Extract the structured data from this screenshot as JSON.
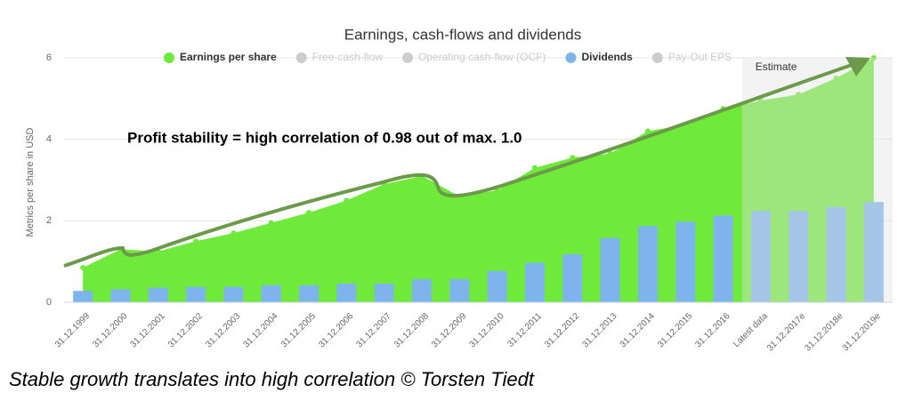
{
  "chart_data": {
    "type": "bar_area",
    "title": "Earnings, cash-flows and dividends",
    "y_label": "Metrics per share in USD",
    "annotation": "Profit stability = high correlation of 0.98 out of max. 1.0",
    "caption": "Stable growth translates into high correlation © Torsten Tiedt",
    "estimate_label": "Estimate",
    "estimate_start": "Latest data",
    "categories": [
      "31.12.1999",
      "31.12.2000",
      "31.12.2001",
      "31.12.2002",
      "31.12.2003",
      "31.12.2004",
      "31.12.2005",
      "31.12.2006",
      "31.12.2007",
      "31.12.2008",
      "31.12.2009",
      "31.12.2010",
      "31.12.2011",
      "31.12.2012",
      "31.12.2013",
      "31.12.2014",
      "31.12.2015",
      "31.12.2016",
      "Latest data",
      "31.12.2017e",
      "31.12.2018e",
      "31.12.2019e"
    ],
    "series": [
      {
        "name": "Earnings per share",
        "color": "#6fea3a",
        "kind": "area",
        "values": [
          0.85,
          1.3,
          1.25,
          1.5,
          1.7,
          1.95,
          2.2,
          2.5,
          2.9,
          3.1,
          2.6,
          2.75,
          3.3,
          3.55,
          3.65,
          4.2,
          4.35,
          4.75,
          4.95,
          5.1,
          5.5,
          6.0
        ]
      },
      {
        "name": "Dividends",
        "color": "#7db4ec",
        "kind": "bar",
        "values": [
          0.28,
          0.32,
          0.36,
          0.38,
          0.38,
          0.42,
          0.42,
          0.46,
          0.46,
          0.57,
          0.57,
          0.77,
          0.97,
          1.18,
          1.58,
          1.87,
          1.98,
          2.13,
          2.24,
          2.24,
          2.34,
          2.46
        ]
      }
    ],
    "legend": [
      {
        "name": "Earnings per share",
        "color": "#6fea3a",
        "active": true
      },
      {
        "name": "Free-cash-flow",
        "color": "#cccccc",
        "active": false
      },
      {
        "name": "Operating cash-flow (OCF)",
        "color": "#cccccc",
        "active": false
      },
      {
        "name": "Dividends",
        "color": "#7db4ec",
        "active": true
      },
      {
        "name": "Pay-Out EPS",
        "color": "#cccccc",
        "active": false
      }
    ],
    "ylim": [
      0,
      6
    ],
    "yticks": [
      0,
      2,
      4,
      6
    ],
    "grid": true
  }
}
